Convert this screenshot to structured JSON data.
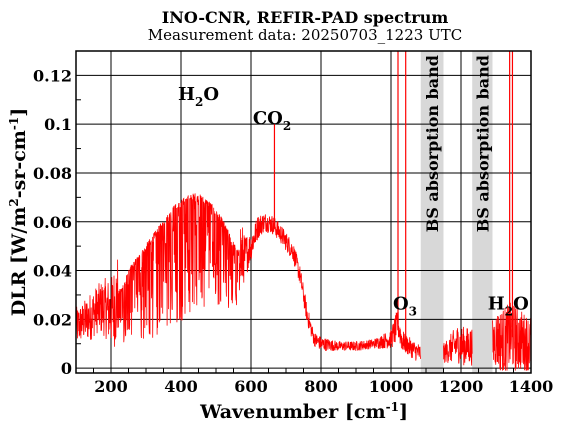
{
  "chart_data": {
    "type": "line",
    "title": "INO-CNR, REFIR-PAD spectrum",
    "subtitle": "Measurement data: 20250703_1223 UTC",
    "xlabel": {
      "base": "Wavenumber [cm",
      "sup": "-1",
      "close": "]"
    },
    "ylabel": {
      "p1": "DLR [W/m",
      "sup1": "2",
      "p2": "-sr-cm",
      "sup2": "-1",
      "p3": "]"
    },
    "xlim": [
      100,
      1400
    ],
    "ylim": [
      -0.002,
      0.13
    ],
    "x_ticks": [
      200,
      400,
      600,
      800,
      1000,
      1200,
      1400
    ],
    "y_ticks": [
      0,
      0.02,
      0.04,
      0.06,
      0.08,
      0.1,
      0.12
    ],
    "x_tick_labels": [
      "200",
      "400",
      "600",
      "800",
      "1000",
      "1200",
      "1400"
    ],
    "y_tick_labels": [
      "0",
      "0.02",
      "0.04",
      "0.06",
      "0.08",
      "0.1",
      "0.12"
    ],
    "grid": true,
    "series_color": "#ff0000",
    "band_color": "#d8d8d8",
    "bands": [
      {
        "x0": 1085,
        "x1": 1150,
        "label": "BS absorption band"
      },
      {
        "x0": 1232,
        "x1": 1290,
        "label": "BS absorption band"
      }
    ],
    "annotations": [
      {
        "key": "h2o_1",
        "base": "H",
        "sub": "2",
        "tail": "O",
        "x": 450,
        "y": 0.11
      },
      {
        "key": "co2",
        "base": "CO",
        "sub": "2",
        "tail": "",
        "x": 660,
        "y": 0.1
      },
      {
        "key": "o3",
        "base": "O",
        "sub": "3",
        "tail": "",
        "x": 1040,
        "y": 0.024
      },
      {
        "key": "h2o_2",
        "base": "H",
        "sub": "2",
        "tail": "O",
        "x": 1335,
        "y": 0.024
      }
    ],
    "series": [
      {
        "x": [
          100,
          120,
          140,
          160,
          180,
          200,
          220,
          240,
          260,
          280,
          300,
          320,
          340,
          360,
          380,
          400,
          420,
          440,
          460,
          480,
          500,
          520,
          540,
          560,
          580,
          600,
          620,
          640,
          660,
          680,
          700,
          720,
          740,
          760,
          780,
          800,
          850,
          900,
          950,
          1000,
          1010,
          1020,
          1030,
          1040,
          1050,
          1060,
          1070,
          1085,
          1150,
          1170,
          1190,
          1210,
          1232,
          1290,
          1300,
          1320,
          1340,
          1360,
          1380,
          1400
        ],
        "y": [
          0.017,
          0.019,
          0.021,
          0.024,
          0.025,
          0.023,
          0.028,
          0.034,
          0.04,
          0.044,
          0.048,
          0.052,
          0.056,
          0.06,
          0.064,
          0.066,
          0.068,
          0.069,
          0.068,
          0.066,
          0.062,
          0.058,
          0.052,
          0.046,
          0.045,
          0.05,
          0.058,
          0.06,
          0.059,
          0.056,
          0.052,
          0.048,
          0.038,
          0.022,
          0.012,
          0.01,
          0.009,
          0.009,
          0.01,
          0.012,
          0.015,
          0.018,
          0.012,
          0.01,
          0.009,
          0.008,
          0.007,
          0.006,
          0.006,
          0.008,
          0.01,
          0.009,
          0.009,
          0.01,
          0.012,
          0.011,
          0.013,
          0.012,
          0.011,
          0.01
        ],
        "amp": [
          0.008,
          0.008,
          0.01,
          0.01,
          0.012,
          0.014,
          0.02,
          0.03,
          0.035,
          0.04,
          0.045,
          0.05,
          0.052,
          0.055,
          0.058,
          0.06,
          0.06,
          0.058,
          0.055,
          0.05,
          0.045,
          0.04,
          0.035,
          0.03,
          0.01,
          0.006,
          0.005,
          0.004,
          0.004,
          0.004,
          0.004,
          0.004,
          0.004,
          0.004,
          0.003,
          0.003,
          0.002,
          0.002,
          0.002,
          0.004,
          0.006,
          0.006,
          0.005,
          0.004,
          0.004,
          0.004,
          0.004,
          0.004,
          0.004,
          0.006,
          0.008,
          0.008,
          0.008,
          0.01,
          0.012,
          0.014,
          0.014,
          0.014,
          0.012,
          0.012
        ]
      }
    ],
    "spikes": [
      {
        "x": 667,
        "y": 0.1
      },
      {
        "x": 1020,
        "y": 0.13
      },
      {
        "x": 1042,
        "y": 0.13
      },
      {
        "x": 1339,
        "y": 0.13
      },
      {
        "x": 1347,
        "y": 0.13
      }
    ]
  }
}
